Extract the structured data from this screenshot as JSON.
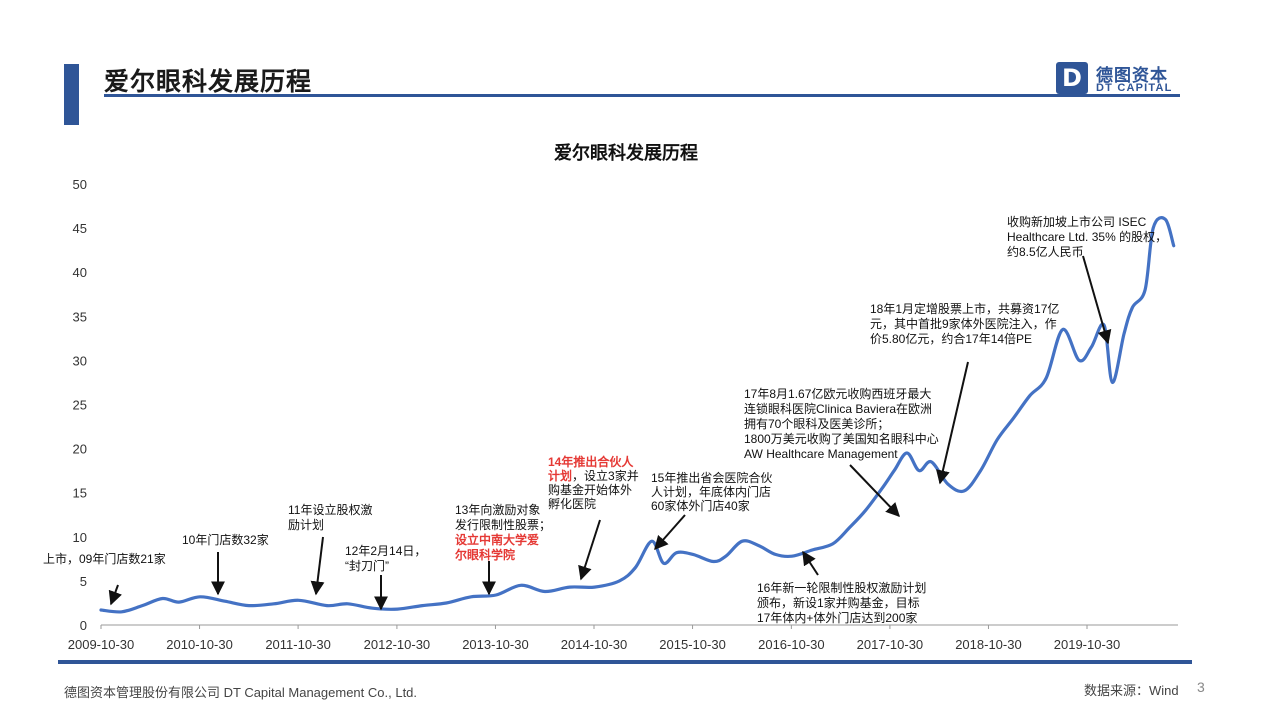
{
  "header": {
    "title": "爱尔眼科发展历程",
    "logo_mark": "D",
    "logo_cn": "德图资本",
    "logo_en": "DT CAPITAL"
  },
  "colors": {
    "accent": "#2f5597",
    "line": "#4472c4",
    "highlight": "#e53935"
  },
  "chart_data": {
    "type": "line",
    "title": "爱尔眼科发展历程",
    "xlabel": "",
    "ylabel": "",
    "ylim": [
      0,
      50
    ],
    "yticks": [
      0,
      5,
      10,
      15,
      20,
      25,
      30,
      35,
      40,
      45,
      50
    ],
    "xticks": [
      "2009-10-30",
      "2010-10-30",
      "2011-10-30",
      "2012-10-30",
      "2013-10-30",
      "2014-10-30",
      "2015-10-30",
      "2016-10-30",
      "2017-10-30",
      "2018-10-30",
      "2019-10-30"
    ],
    "grid": false,
    "series": [
      {
        "x": [
          "2009-10-30",
          "2010-01-15",
          "2010-04-01",
          "2010-06-15",
          "2010-08-15",
          "2010-11-01",
          "2011-02-01",
          "2011-05-01",
          "2011-08-01",
          "2011-11-01",
          "2012-02-14",
          "2012-05-01",
          "2012-08-01",
          "2012-11-01",
          "2013-02-01",
          "2013-05-01",
          "2013-08-01",
          "2013-11-01",
          "2014-02-01",
          "2014-05-01",
          "2014-08-01",
          "2014-11-01",
          "2015-02-01",
          "2015-04-01",
          "2015-06-01",
          "2015-07-15",
          "2015-09-01",
          "2015-11-01",
          "2016-01-15",
          "2016-03-01",
          "2016-05-01",
          "2016-07-01",
          "2016-09-01",
          "2016-11-01",
          "2017-01-15",
          "2017-04-01",
          "2017-06-01",
          "2017-08-01",
          "2017-10-01",
          "2017-11-15",
          "2018-01-01",
          "2018-02-15",
          "2018-04-01",
          "2018-06-01",
          "2018-08-01",
          "2018-10-01",
          "2018-12-01",
          "2019-02-01",
          "2019-04-01",
          "2019-06-01",
          "2019-08-01",
          "2019-10-01",
          "2019-11-15",
          "2020-01-01",
          "2020-02-01",
          "2020-03-15",
          "2020-04-15",
          "2020-06-01",
          "2020-07-01",
          "2020-08-15",
          "2020-09-15"
        ],
        "values": [
          1.7,
          1.5,
          2.2,
          3.0,
          2.6,
          3.2,
          2.7,
          2.2,
          2.4,
          2.8,
          2.2,
          2.4,
          1.9,
          1.8,
          2.2,
          2.5,
          3.2,
          3.4,
          4.5,
          3.8,
          4.3,
          4.3,
          5.0,
          6.5,
          9.5,
          7.0,
          8.2,
          8.0,
          7.2,
          7.8,
          9.5,
          9.0,
          8.0,
          7.8,
          8.5,
          9.2,
          11.0,
          13.0,
          15.5,
          17.5,
          19.5,
          17.5,
          18.5,
          16.0,
          15.2,
          17.5,
          21.0,
          23.5,
          26.0,
          28.0,
          33.5,
          30.0,
          31.5,
          34.0,
          27.5,
          33.0,
          36.0,
          38.0,
          45.0,
          46.0,
          43.0
        ]
      }
    ],
    "annotations": [
      {
        "lines": [
          "上市，09年门店数21家"
        ],
        "target": {
          "x": "2009-11-30",
          "y": 1.7
        }
      },
      {
        "lines": [
          "10年门店数32家"
        ],
        "target": {
          "x": "2010-11-01",
          "y": 3.2
        }
      },
      {
        "lines": [
          "11年设立股权激",
          "励计划"
        ],
        "target": {
          "x": "2011-10-20",
          "y": 2.8
        }
      },
      {
        "lines": [
          "12年2月14日，",
          "“封刀门”"
        ],
        "target": {
          "x": "2012-09-01",
          "y": 2.0
        }
      },
      {
        "lines": [
          "13年向激励对象",
          "发行限制性股票；"
        ],
        "highlight_lines": [
          "设立中南大学爱",
          "尔眼科学院"
        ],
        "target": {
          "x": "2013-08-01",
          "y": 3.2
        }
      },
      {
        "highlight_lines": [
          "14年推出合伙人",
          "计划"
        ],
        "lines": [
          "，设立3家并",
          "购基金开始体外",
          "孵化医院"
        ],
        "target": {
          "x": "2014-08-01",
          "y": 4.3
        }
      },
      {
        "lines": [
          "15年推出省会医院合伙",
          "人计划，年底体内门店",
          "60家体外门店40家"
        ],
        "target": {
          "x": "2015-05-01",
          "y": 8.0
        }
      },
      {
        "lines": [
          "16年新一轮限制性股权激励计划",
          "颁布，新设1家并购基金，目标",
          "17年体内+体外门店达到200家"
        ],
        "target": {
          "x": "2016-10-01",
          "y": 8.0
        }
      },
      {
        "lines": [
          "17年8月1.67亿欧元收购西班牙最大",
          "连锁眼科医院Clinica Baviera在欧洲",
          "拥有70个眼科及医美诊所；",
          "1800万美元收购了美国知名眼科中心",
          "AW Healthcare Management"
        ],
        "target": {
          "x": "2017-08-20",
          "y": 12.0
        }
      },
      {
        "lines": [
          "18年1月定增股票上市，共募资17亿",
          "元，其中首批9家体外医院注入，作",
          "价5.80亿元，约合17年14倍PE"
        ],
        "target": {
          "x": "2017-12-15",
          "y": 16.0
        }
      },
      {
        "lines": [
          "收购新加坡上市公司 ISEC",
          "Healthcare Ltd. 35% 的股权，",
          "约8.5亿人民币"
        ],
        "target": {
          "x": "2019-11-10",
          "y": 32.0
        }
      }
    ]
  },
  "footer": {
    "company": "德图资本管理股份有限公司  DT Capital Management  Co., Ltd.",
    "source": "数据来源：Wind",
    "page": "3"
  }
}
